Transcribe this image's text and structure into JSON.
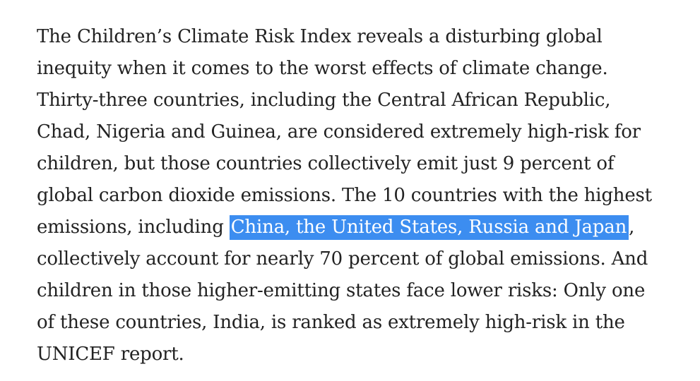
{
  "article": {
    "paragraph": {
      "line1": "The Children’s Climate Risk Index reveals a disturbing global",
      "line2": "inequity when it comes to the worst effects of climate change.",
      "line3": "Thirty-three countries, including the Central African Republic,",
      "line4": "Chad, Nigeria and Guinea, are considered extremely high-risk for",
      "line5": "children, but those countries collectively emit just 9 percent of",
      "line6": "global carbon dioxide emissions. The 10 countries with the highest",
      "line7_before": "emissions, including ",
      "line7_selected": "China, the United States, Russia and Japan",
      "line7_after": ",",
      "line8": "collectively account for nearly 70 percent of global emissions. And",
      "line9": "children in those higher-emitting states face lower risks: Only one",
      "line10": "of these countries, India, is ranked as extremely high-risk in the",
      "line11": "UNICEF report."
    },
    "selection_color": "#3c8df0",
    "text_color": "#222222"
  }
}
